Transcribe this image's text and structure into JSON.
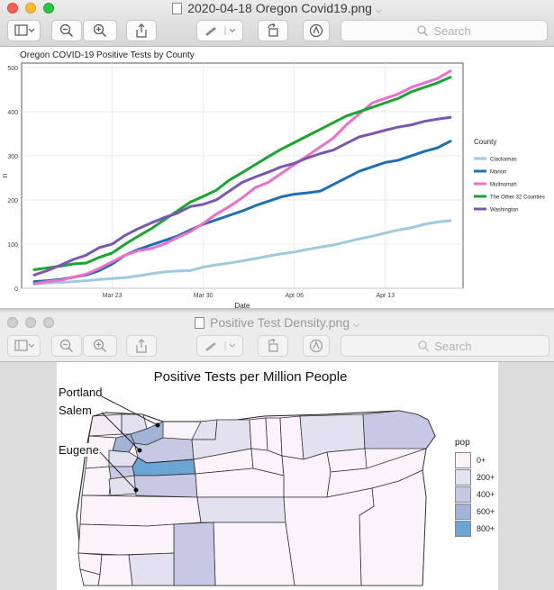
{
  "window1": {
    "title": "2020-04-18 Oregon Covid19.png",
    "search_placeholder": "Search",
    "toolbar": {
      "sidebar_icon": "sidebar-icon",
      "zoom_out_icon": "zoom-out-icon",
      "zoom_in_icon": "zoom-in-icon",
      "share_icon": "share-icon",
      "markup_icon": "pen-icon",
      "rotate_icon": "rotate-icon",
      "annotate_icon": "markup-circle-icon"
    }
  },
  "window2": {
    "title": "Positive Test Density.png",
    "search_placeholder": "Search"
  },
  "chart_data": [
    {
      "type": "line",
      "title": "Oregon COVID-19 Positive Tests by County",
      "xlabel": "Date",
      "ylabel": "n",
      "x": [
        "2020-03-17",
        "2020-03-18",
        "2020-03-19",
        "2020-03-20",
        "2020-03-21",
        "2020-03-22",
        "2020-03-23",
        "2020-03-24",
        "2020-03-25",
        "2020-03-26",
        "2020-03-27",
        "2020-03-28",
        "2020-03-29",
        "2020-03-30",
        "2020-03-31",
        "2020-04-01",
        "2020-04-02",
        "2020-04-03",
        "2020-04-04",
        "2020-04-05",
        "2020-04-06",
        "2020-04-07",
        "2020-04-08",
        "2020-04-09",
        "2020-04-10",
        "2020-04-11",
        "2020-04-12",
        "2020-04-13",
        "2020-04-14",
        "2020-04-15",
        "2020-04-16",
        "2020-04-17",
        "2020-04-18"
      ],
      "x_ticks": [
        "Mar 23",
        "Mar 30",
        "Apr 06",
        "Apr 13"
      ],
      "ylim": [
        0,
        510
      ],
      "y_ticks": [
        0,
        100,
        200,
        300,
        400,
        500
      ],
      "grid": true,
      "legend_title": "County",
      "legend_position": "right",
      "series": [
        {
          "name": "Clackamas",
          "color": "#9ecae1",
          "values": [
            10,
            12,
            13,
            15,
            17,
            20,
            22,
            24,
            28,
            33,
            37,
            39,
            40,
            48,
            53,
            57,
            62,
            67,
            73,
            78,
            82,
            88,
            93,
            98,
            105,
            112,
            118,
            125,
            132,
            137,
            145,
            150,
            153
          ]
        },
        {
          "name": "Marion",
          "color": "#1f6fb4",
          "values": [
            15,
            17,
            20,
            25,
            30,
            40,
            55,
            75,
            88,
            98,
            108,
            118,
            132,
            145,
            155,
            165,
            175,
            187,
            197,
            207,
            213,
            216,
            220,
            235,
            250,
            265,
            275,
            285,
            290,
            300,
            310,
            318,
            333
          ]
        },
        {
          "name": "Multnomah",
          "color": "#ee6fc6",
          "values": [
            10,
            15,
            18,
            25,
            32,
            45,
            60,
            75,
            85,
            90,
            100,
            115,
            128,
            147,
            168,
            185,
            205,
            228,
            240,
            260,
            280,
            300,
            320,
            340,
            370,
            395,
            420,
            430,
            440,
            455,
            465,
            475,
            492
          ]
        },
        {
          "name": "The Other 32 Counties",
          "color": "#1aa530",
          "values": [
            42,
            46,
            50,
            55,
            57,
            70,
            80,
            100,
            118,
            135,
            155,
            175,
            195,
            208,
            222,
            245,
            262,
            280,
            298,
            315,
            330,
            345,
            360,
            375,
            390,
            400,
            410,
            420,
            430,
            445,
            455,
            465,
            478
          ]
        },
        {
          "name": "Washington",
          "color": "#7b56b3",
          "values": [
            30,
            40,
            52,
            65,
            75,
            92,
            100,
            120,
            135,
            148,
            160,
            170,
            185,
            190,
            200,
            220,
            240,
            252,
            263,
            275,
            283,
            295,
            305,
            313,
            328,
            343,
            350,
            358,
            365,
            370,
            378,
            383,
            387
          ]
        }
      ]
    },
    {
      "type": "heatmap",
      "title": "Positive Tests per Million People",
      "legend_title": "pop",
      "legend_entries": [
        "0+",
        "200+",
        "400+",
        "600+",
        "800+"
      ],
      "legend_colors": [
        "#fcf3fa",
        "#e2e2f0",
        "#c7c8e4",
        "#a3b3d8",
        "#6ba5d4"
      ],
      "annotations": [
        "Portland",
        "Salem",
        "Eugene"
      ]
    }
  ]
}
